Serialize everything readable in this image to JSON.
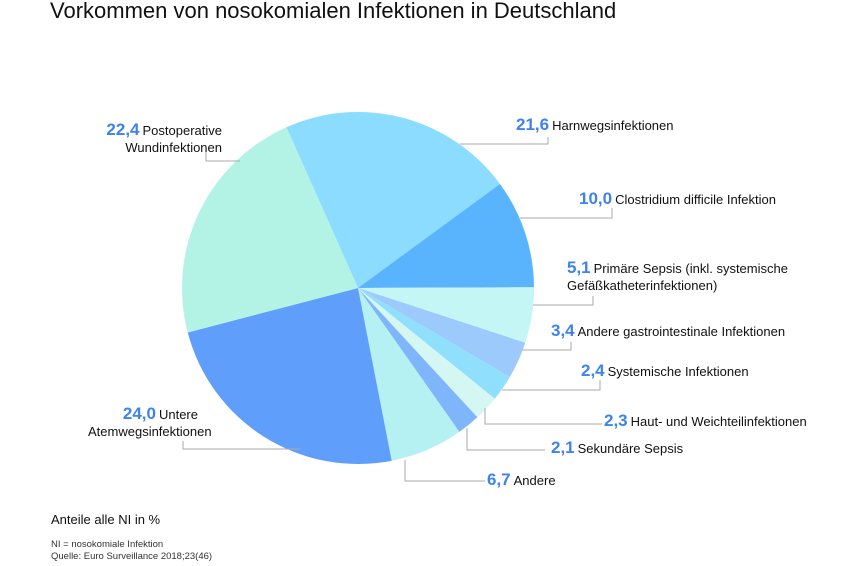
{
  "chart_data": {
    "type": "pie",
    "title": "Vorkommen von nosokomialen Infektionen in Deutschland",
    "subtitle": "Anteile alle NI in %",
    "value_color": "#3d82ee",
    "slices": [
      {
        "value": "21,6",
        "v": 21.6,
        "label": "Harnwegsinfektionen",
        "color": "#8bdcfe"
      },
      {
        "value": "10,0",
        "v": 10.0,
        "label": "Clostridium difficile Infektion",
        "color": "#5ab4fd"
      },
      {
        "value": "5,1",
        "v": 5.1,
        "label": "Primäre Sepsis (inkl. systemische",
        "label2": "Gefäßkatheterinfektionen)",
        "color": "#c4f6f5"
      },
      {
        "value": "3,4",
        "v": 3.4,
        "label": "Andere gastrointestinale Infektionen",
        "color": "#9ccafc"
      },
      {
        "value": "2,4",
        "v": 2.4,
        "label": "Systemische Infektionen",
        "color": "#8fdffd"
      },
      {
        "value": "2,3",
        "v": 2.3,
        "label": "Haut- und Weichteilinfektionen",
        "color": "#d4f7f3"
      },
      {
        "value": "2,1",
        "v": 2.1,
        "label": "Sekundäre Sepsis",
        "color": "#7fb6fb"
      },
      {
        "value": "6,7",
        "v": 6.7,
        "label": "Andere",
        "color": "#b5f1f3"
      },
      {
        "value": "24,0",
        "v": 24.0,
        "label": "Untere",
        "label2": "Atemwegsinfektionen",
        "color": "#5f9ffb"
      },
      {
        "value": "22,4",
        "v": 22.4,
        "label": "Postoperative",
        "label2": "Wundinfektionen",
        "color": "#b2f3e6"
      }
    ]
  },
  "footer": {
    "note": "NI = nosokomiale Infektion",
    "source": "Quelle: Euro Surveillance 2018;23(46)"
  }
}
